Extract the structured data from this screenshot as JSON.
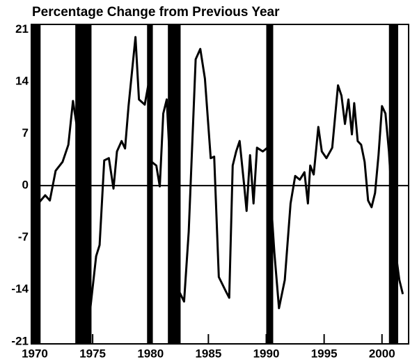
{
  "chart_data": {
    "type": "line",
    "title": "Percentage Change from Previous Year",
    "xlim": [
      1969.7,
      2002.3
    ],
    "ylim": [
      -21.3,
      21.7
    ],
    "xticks": [
      1970,
      1975,
      1980,
      1985,
      1990,
      1995,
      2000
    ],
    "yticks": [
      -21,
      -14,
      -7,
      0,
      7,
      14,
      21
    ],
    "grid": false,
    "zero_line": true,
    "shaded_periods": [
      [
        1969.7,
        1970.5
      ],
      [
        1973.5,
        1974.9
      ],
      [
        1979.7,
        1980.2
      ],
      [
        1981.5,
        1982.6
      ],
      [
        1990.0,
        1990.6
      ],
      [
        2000.6,
        2001.4
      ]
    ],
    "shade_color": "#000000",
    "series": [
      {
        "color": "#000000",
        "x": [
          1970.3,
          1970.9,
          1971.3,
          1971.8,
          1972.4,
          1972.9,
          1973.3,
          1973.6,
          1974.2,
          1974.8,
          1975.3,
          1975.6,
          1976.0,
          1976.4,
          1976.8,
          1977.1,
          1977.5,
          1977.8,
          1978.1,
          1978.7,
          1979.0,
          1979.5,
          1979.8,
          1980.1,
          1980.5,
          1980.8,
          1981.1,
          1981.4,
          1981.7,
          1982.3,
          1982.9,
          1983.3,
          1983.9,
          1984.3,
          1984.7,
          1985.2,
          1985.5,
          1985.9,
          1986.5,
          1986.8,
          1987.1,
          1987.4,
          1987.7,
          1988.1,
          1988.3,
          1988.6,
          1988.9,
          1989.2,
          1989.7,
          1990.1,
          1990.7,
          1991.1,
          1991.6,
          1992.1,
          1992.5,
          1992.9,
          1993.3,
          1993.6,
          1993.8,
          1994.1,
          1994.5,
          1994.8,
          1995.2,
          1995.7,
          1996.2,
          1996.5,
          1996.8,
          1997.1,
          1997.4,
          1997.6,
          1997.9,
          1998.2,
          1998.5,
          1998.8,
          1999.1,
          1999.4,
          1999.7,
          2000.0,
          2000.3,
          2000.6,
          2001.1,
          2001.5,
          2001.8
        ],
        "values": [
          -2.4,
          -1.3,
          -2,
          2,
          3.2,
          5.5,
          11.4,
          8.3,
          -9,
          -16.5,
          -9.5,
          -8,
          3.4,
          3.7,
          -0.4,
          4.6,
          6,
          5,
          10.7,
          20,
          11.6,
          10.9,
          13.5,
          3.2,
          2.7,
          -0.1,
          9.7,
          11.6,
          2.2,
          -13.7,
          -15.6,
          -6.2,
          17,
          18.4,
          14.4,
          3.7,
          3.9,
          -12.3,
          -14.2,
          -15.1,
          2.7,
          4.6,
          6,
          -0.1,
          -3.4,
          4.1,
          -2.4,
          5.1,
          4.6,
          5.1,
          -9,
          -16.5,
          -12.7,
          -2.4,
          1.3,
          0.8,
          1.8,
          -2.4,
          2.7,
          1.5,
          7.9,
          4.6,
          3.7,
          5.1,
          13.5,
          12.1,
          8.3,
          11.6,
          6.9,
          11.1,
          6,
          5.5,
          3.2,
          -2,
          -2.9,
          -1,
          4.1,
          10.7,
          9.7,
          4.6,
          -8,
          -12.7,
          -14.6
        ]
      }
    ]
  }
}
